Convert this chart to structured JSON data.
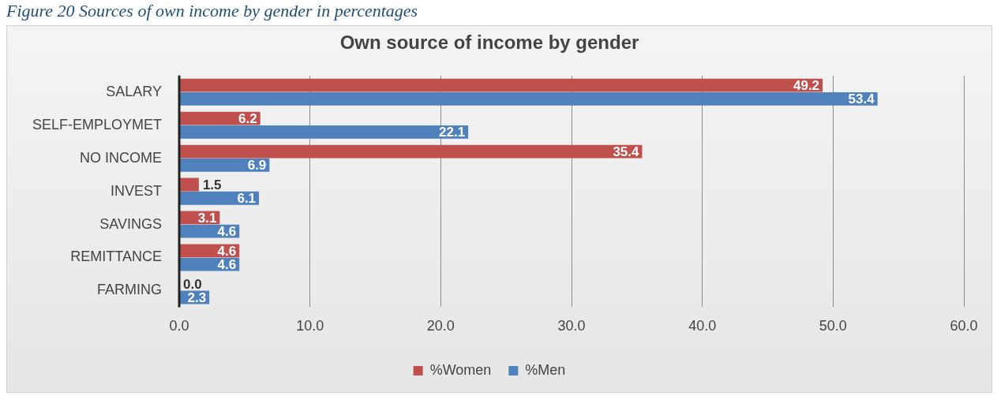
{
  "chart_data": {
    "type": "bar",
    "orientation": "horizontal",
    "title": "Own source of income by gender",
    "annotations": [
      "Figure 20 Sources of own income by gender in percentages"
    ],
    "categories": [
      "SALARY",
      "SELF-EMPLOYMET",
      "NO INCOME",
      "INVEST",
      "SAVINGS",
      "REMITTANCE",
      "FARMING"
    ],
    "series": [
      {
        "name": "%Women",
        "color": "#c0504d",
        "values": [
          49.2,
          6.2,
          35.4,
          1.5,
          3.1,
          4.6,
          0.0
        ],
        "value_labels": [
          "49.2",
          "6.2",
          "35.4",
          "1.5",
          "3.1",
          "4.6",
          "0.0"
        ]
      },
      {
        "name": "%Men",
        "color": "#4f81bd",
        "values": [
          53.4,
          22.1,
          6.9,
          6.1,
          4.6,
          4.6,
          2.3
        ],
        "value_labels": [
          "53.4",
          "22.1",
          "6.9",
          "6.1",
          "4.6",
          "4.6",
          "2.3"
        ]
      }
    ],
    "xlim": [
      0,
      60
    ],
    "xticks": [
      {
        "value": 0,
        "label": "0.0"
      },
      {
        "value": 10,
        "label": "10.0"
      },
      {
        "value": 20,
        "label": "20.0"
      },
      {
        "value": 30,
        "label": "30.0"
      },
      {
        "value": 40,
        "label": "40.0"
      },
      {
        "value": 50,
        "label": "50.0"
      },
      {
        "value": 60,
        "label": "60.0"
      }
    ],
    "grid": "x",
    "legend": "bottom"
  }
}
